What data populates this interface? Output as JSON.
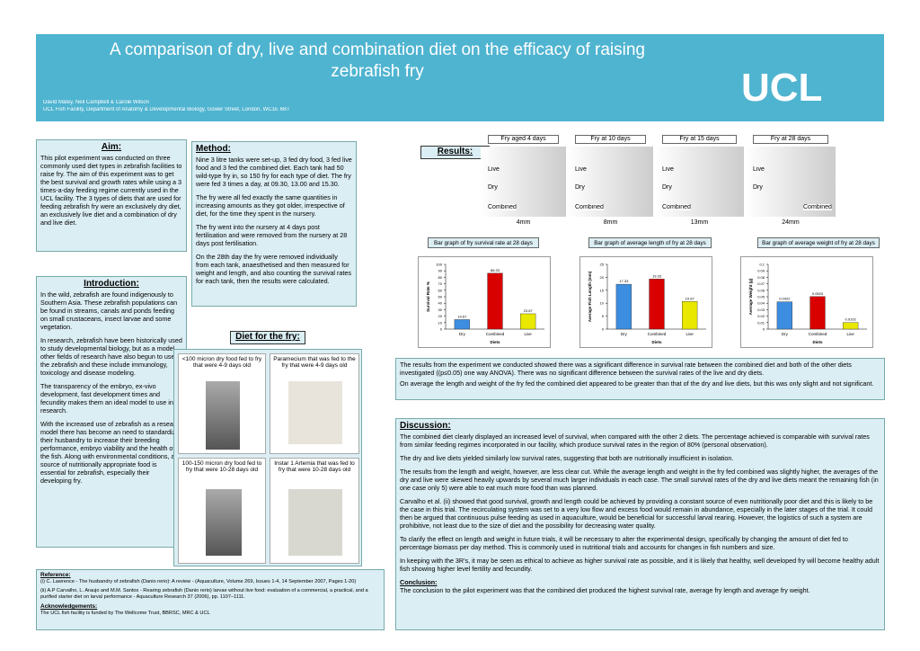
{
  "header": {
    "title": "A comparison of dry, live and combination diet on the efficacy of raising zebrafish fry",
    "authors": "David Maley, Neil Campbell & Carole Wilson",
    "affiliation": "UCL Fish Facility, Department of Anatomy & Developmental Biology, Gower Street, London, WC1E 6BT",
    "logo": "UCL"
  },
  "aim": {
    "heading": "Aim:",
    "text": "This pilot experiment was conducted on three commonly used diet types in zebrafish facilities to raise fry. The aim of this experiment was to get the best survival and growth rates while using a 3 times-a-day feeding regime currently used in the UCL facility. The 3 types of diets that are used for feeding zebrafish fry were an exclusively dry diet, an exclusively live diet and a combination of dry and live diet."
  },
  "introduction": {
    "heading": "Introduction:",
    "paragraphs": [
      "In the wild, zebrafish are found indigenously to Southern Asia. These zebrafish populations can be found in streams, canals and ponds feeding on small crustaceans, insect larvae and some vegetation.",
      "In research, zebrafish have been historically used to study developmental biology, but as a model other fields of research have also begun to use the zebrafish and these include immunology, toxicology and disease modeling.",
      "The transparency of the embryo, ex-vivo development, fast development times and fecundity makes them an ideal model to use in research.",
      "With the increased use of zebrafish as a research model there has become an need to standardize their husbandry to increase their breeding performance, embryo viability and the health of the fish. Along with environmental conditions, a source of nutritionally appropriate food is essential for zebrafish, especially their developing fry."
    ]
  },
  "method": {
    "heading": "Method:",
    "paragraphs": [
      "Nine 3 litre tanks were set-up, 3 fed dry food, 3 fed live food and 3 fed the combined diet. Each tank had 50 wild-type fry in, so 150 fry for each type of diet. The fry were fed 3 times a day, at 09.30, 13.00 and 15.30.",
      "The fry were all fed exactly the same quantities in increasing amounts as they got older, irrespective of diet, for the time they spent in the nursery.",
      "The fry went into the nursery at 4 days post fertilisation and were removed from the nursery at 28 days post fertilisation.",
      "On the 28th day the fry were removed individually from each tank, anaesthetised and then measured for weight and length, and also counting the survival rates for each tank, then the results were calculated."
    ]
  },
  "diet": {
    "heading": "Diet for the fry:",
    "items": [
      "<100 micron dry food fed to fry that were 4-9 days old",
      "Paramecium that was fed to the fry that were 4-9 days old",
      "100-150 micron dry food fed to fry that were 10-28 days old",
      "Instar 1 Artemia that was fed to fry that were 10-28 days old"
    ]
  },
  "results": {
    "heading": "Results:",
    "panels": [
      {
        "title": "Fry aged 4 days",
        "labels": [
          "Live",
          "Dry",
          "Combined"
        ],
        "size": "4mm"
      },
      {
        "title": "Fry at 10 days",
        "labels": [
          "Live",
          "Dry",
          "Combined"
        ],
        "size": "8mm"
      },
      {
        "title": "Fry at 15 days",
        "labels": [
          "Live",
          "Dry",
          "Combined"
        ],
        "size": "13mm"
      },
      {
        "title": "Fry at 28 days",
        "labels": [
          "Live",
          "Dry",
          "Combined"
        ],
        "size": "24mm"
      }
    ],
    "paragraphs": [
      "The results from the experiment we conducted showed there was a significant difference in survival rate between the combined diet and both of the other diets investigated ((p≤0.05) one way ANOVA). There was no significant difference between the survival rates of the live and dry diets.",
      "On average the length and weight of the fry fed the combined diet appeared to be greater than that of the dry and live diets, but this was only slight and not significant."
    ]
  },
  "charts": [
    {
      "type": "bar",
      "title": "Bar graph of fry survival rate at 28 days",
      "y_label": "Survival Rate %",
      "x_label": "Diets",
      "categories": [
        "Dry",
        "Combined",
        "Live"
      ],
      "colors": [
        "#3d8de0",
        "#d90000",
        "#e8e800"
      ],
      "values": [
        14.67,
        86.33,
        23.67
      ],
      "ylim": [
        0,
        100
      ],
      "yticks": [
        0,
        10,
        20,
        30,
        40,
        50,
        60,
        70,
        80,
        90,
        100
      ]
    },
    {
      "type": "bar",
      "title": "Bar graph of average length of fry at 28 days",
      "y_label": "Average Fish Length (mm)",
      "x_label": "Diets",
      "categories": [
        "Dry",
        "Combined",
        "Live"
      ],
      "colors": [
        "#3d8de0",
        "#d90000",
        "#e8e800"
      ],
      "values": [
        17.33,
        19.33,
        10.67
      ],
      "ylim": [
        0,
        25
      ],
      "yticks": [
        0,
        5,
        10,
        15,
        20,
        25
      ]
    },
    {
      "type": "bar",
      "title": "Bar graph of average weight of fry at 28 days",
      "y_label": "Average Weight (g)",
      "x_label": "Diets",
      "categories": [
        "Dry",
        "Combined",
        "Live"
      ],
      "colors": [
        "#3d8de0",
        "#d90000",
        "#e8e800"
      ],
      "values": [
        0.0422,
        0.0503,
        0.0102
      ],
      "ylim": [
        0,
        0.1
      ],
      "yticks": [
        0,
        0.01,
        0.02,
        0.03,
        0.04,
        0.05,
        0.06,
        0.07,
        0.08,
        0.09,
        0.1
      ]
    }
  ],
  "discussion": {
    "heading": "Discussion:",
    "paragraphs": [
      "The combined diet clearly displayed an increased level of survival, when compared with the other 2 diets. The percentage achieved is comparable with survival rates from similar feeding regimes incorporated in our facility, which produce survival rates in the region of 80% (personal observation).",
      "The dry and live diets yielded similarly low survival rates, suggesting that both are nutritionally insufficient in isolation.",
      "The results from the length and weight, however, are less clear cut. While the average length and weight in the fry fed combined was slightly higher, the averages of the dry and live were skewed heavily upwards by several much larger individuals in each case. The small survival rates of the dry and live diets meant the remaining fish (in one case only 5) were able to eat much more food than was planned.",
      "Carvalho et al. (ii) showed that good survival, growth and length could be achieved by providing a constant source of even nutritionally poor diet and this is likely to be the case in this trial. The recirculating system was set to a very low flow and excess food would remain in abundance, especially in the later stages of the trial. It could then be argued that continuous pulse feeding as used in aquaculture, would be beneficial for successful larval rearing. However, the logistics of such a system are prohibitive, not least due to the size of diet and the possibility for decreasing water quality.",
      "To clarify the effect on length and weight in future trials, it will be necessary to alter the experimental design, specifically by changing the amount of diet fed to percentage biomass per day method. This is commonly used in nutritional trials and accounts for changes in fish numbers and size.",
      "In keeping with the 3R's, it may be seen as ethical to achieve as higher survival rate as possible, and it is likely that healthy, well developed fry will become healthy adult fish showing higher level fertility and fecundity."
    ],
    "conclusion_heading": "Conclusion:",
    "conclusion": "The conclusion to the pilot experiment was that the combined diet produced the highest survival rate, average fry length and average fry weight."
  },
  "references": {
    "heading": "Reference:",
    "items": [
      "(i) C. Lawrence - The husbandry of zebrafish (Danio rerio): A review - (Aquaculture, Volume 269, Issues 1-4, 14 September 2007, Pages 1-20)",
      "(ii) A.P Carvalho, L. Araujo and M.M. Santos - Rearing zebrafish (Danio rerio) larvae without live food: evaluation of a commercial, a practical, and a purified starter diet on larval performance - Aquaculture Research 37 (2006), pp. 1107–1111."
    ],
    "ack_heading": "Acknowledgements:",
    "ack": "The UCL fish facility is funded by The Wellcome Trust, BBRSC, MRC & UCL"
  }
}
